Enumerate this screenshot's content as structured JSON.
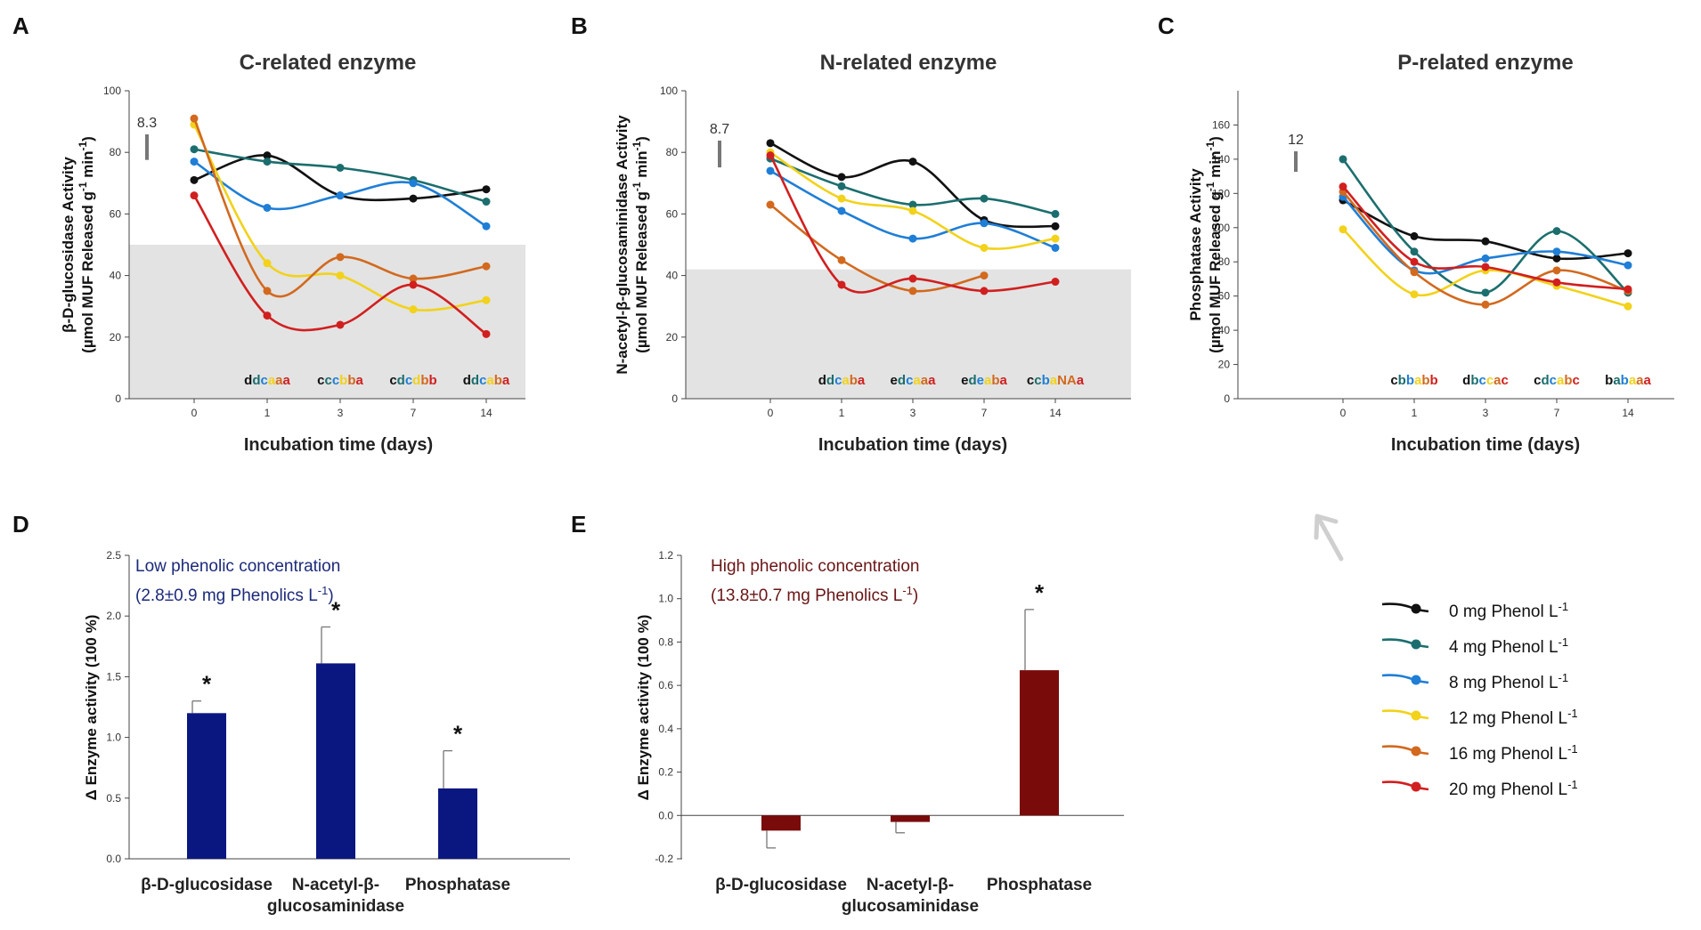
{
  "chart_data": [
    {
      "id": "A",
      "type": "line",
      "panel_label": "A",
      "title": "C-related enzyme",
      "ylabel": [
        "β-D-glucosidase Activity",
        "(µmol MUF Released g",
        "-1",
        " min",
        "-1",
        ")"
      ],
      "xlabel": "Incubation time (days)",
      "ylim": [
        0,
        100
      ],
      "yticks": [
        0,
        20,
        40,
        60,
        80,
        100
      ],
      "x": [
        "0",
        "1",
        "3",
        "7",
        "14"
      ],
      "shade_top": 50,
      "scale_bar": {
        "label": "8.3",
        "size": 8.3
      },
      "series": [
        {
          "name": "0 mg Phenol",
          "color": "#111111",
          "values": [
            71,
            79,
            66,
            65,
            68
          ]
        },
        {
          "name": "4 mg Phenol",
          "color": "#1c6e6e",
          "values": [
            81,
            77,
            75,
            71,
            64
          ]
        },
        {
          "name": "8 mg Phenol",
          "color": "#1f7ed6",
          "values": [
            77,
            62,
            66,
            70,
            56
          ]
        },
        {
          "name": "12 mg Phenol",
          "color": "#f2d21a",
          "values": [
            89,
            44,
            40,
            29,
            32
          ]
        },
        {
          "name": "16 mg Phenol",
          "color": "#d2691e",
          "values": [
            91,
            35,
            46,
            39,
            43
          ]
        },
        {
          "name": "20 mg Phenol",
          "color": "#d11f1f",
          "values": [
            66,
            27,
            24,
            37,
            21
          ]
        }
      ],
      "sig_letters": [
        [
          "d",
          "d",
          "c",
          "a",
          "a",
          "a"
        ],
        [
          "c",
          "c",
          "c",
          "b",
          "b",
          "a"
        ],
        [
          "c",
          "d",
          "c",
          "d",
          "b",
          "b"
        ],
        [
          "d",
          "d",
          "c",
          "a",
          "b",
          "a"
        ]
      ]
    },
    {
      "id": "B",
      "type": "line",
      "panel_label": "B",
      "title": "N-related enzyme",
      "ylabel": [
        "N-acetyl-β-glucosaminidase Activity",
        "(µmol MUF Released g",
        "-1",
        " min",
        "-1",
        ")"
      ],
      "xlabel": "Incubation time (days)",
      "ylim": [
        0,
        100
      ],
      "yticks": [
        0,
        20,
        40,
        60,
        80,
        100
      ],
      "x": [
        "0",
        "1",
        "3",
        "7",
        "14"
      ],
      "shade_top": 42,
      "scale_bar": {
        "label": "8.7",
        "size": 8.7
      },
      "series": [
        {
          "name": "0 mg Phenol",
          "color": "#111111",
          "values": [
            83,
            72,
            77,
            58,
            56
          ]
        },
        {
          "name": "4 mg Phenol",
          "color": "#1c6e6e",
          "values": [
            78,
            69,
            63,
            65,
            60
          ]
        },
        {
          "name": "8 mg Phenol",
          "color": "#1f7ed6",
          "values": [
            74,
            61,
            52,
            57,
            49
          ]
        },
        {
          "name": "12 mg Phenol",
          "color": "#f2d21a",
          "values": [
            80,
            65,
            61,
            49,
            52
          ]
        },
        {
          "name": "16 mg Phenol",
          "color": "#d2691e",
          "values": [
            63,
            45,
            35,
            40,
            null
          ]
        },
        {
          "name": "20 mg Phenol",
          "color": "#d11f1f",
          "values": [
            79,
            37,
            39,
            35,
            38
          ]
        }
      ],
      "sig_letters": [
        [
          "d",
          "d",
          "c",
          "a",
          "b",
          "a"
        ],
        [
          "e",
          "d",
          "c",
          "a",
          "a",
          "a"
        ],
        [
          "e",
          "d",
          "e",
          "a",
          "b",
          "a"
        ],
        [
          "c",
          "c",
          "b",
          "a",
          "NA",
          "a"
        ]
      ]
    },
    {
      "id": "C",
      "type": "line",
      "panel_label": "C",
      "title": "P-related enzyme",
      "ylabel": [
        "Phosphatase Activity",
        "(µmol MUF Released g",
        "-1",
        " min",
        "-1",
        ")"
      ],
      "xlabel": "Incubation time (days)",
      "ylim": [
        0,
        180
      ],
      "yticks": [
        0,
        20,
        40,
        60,
        80,
        100,
        120,
        140,
        160
      ],
      "x": [
        "0",
        "1",
        "3",
        "7",
        "14"
      ],
      "shade_top": null,
      "scale_bar": {
        "label": "12",
        "size": 12
      },
      "series": [
        {
          "name": "0 mg Phenol",
          "color": "#111111",
          "values": [
            116,
            95,
            92,
            82,
            85
          ]
        },
        {
          "name": "4 mg Phenol",
          "color": "#1c6e6e",
          "values": [
            140,
            86,
            62,
            98,
            62
          ]
        },
        {
          "name": "8 mg Phenol",
          "color": "#1f7ed6",
          "values": [
            118,
            75,
            82,
            86,
            78
          ]
        },
        {
          "name": "12 mg Phenol",
          "color": "#f2d21a",
          "values": [
            99,
            61,
            75,
            66,
            54
          ]
        },
        {
          "name": "16 mg Phenol",
          "color": "#d2691e",
          "values": [
            121,
            74,
            55,
            75,
            63
          ]
        },
        {
          "name": "20 mg Phenol",
          "color": "#d11f1f",
          "values": [
            124,
            80,
            77,
            68,
            64
          ]
        }
      ],
      "sig_letters": [
        [
          "c",
          "b",
          "b",
          "a",
          "b",
          "b"
        ],
        [
          "d",
          "b",
          "c",
          "c",
          "a",
          "c"
        ],
        [
          "c",
          "d",
          "c",
          "a",
          "b",
          "c"
        ],
        [
          "b",
          "a",
          "b",
          "a",
          "a",
          "a"
        ]
      ]
    },
    {
      "id": "D",
      "type": "bar",
      "panel_label": "D",
      "ylabel": "Δ Enzyme activity (100 %)",
      "ylim": [
        0,
        2.5
      ],
      "yticks": [
        "0.0",
        "0.5",
        "1.0",
        "1.5",
        "2.0",
        "2.5"
      ],
      "categories": [
        [
          "β-D-glucosidase"
        ],
        [
          "N-acetyl-β-",
          "glucosaminidase"
        ],
        [
          "Phosphatase"
        ]
      ],
      "values": [
        1.2,
        1.61,
        0.58
      ],
      "errors": [
        0.1,
        0.3,
        0.31
      ],
      "significant": [
        "*",
        "*",
        "*"
      ],
      "bar_color": "#0b1780",
      "note_line1": "Low phenolic concentration",
      "note_line2": "(2.8±0.9 mg Phenolics L",
      "note_sup": "-1",
      "note_end": ")",
      "note_color": "#1c2a7a"
    },
    {
      "id": "E",
      "type": "bar",
      "panel_label": "E",
      "ylabel": "Δ Enzyme activity (100 %)",
      "ylim": [
        -0.2,
        1.2
      ],
      "yticks": [
        "-0.2",
        "0.0",
        "0.2",
        "0.4",
        "0.6",
        "0.8",
        "1.0",
        "1.2"
      ],
      "categories": [
        [
          "β-D-glucosidase"
        ],
        [
          "N-acetyl-β-",
          "glucosaminidase"
        ],
        [
          "Phosphatase"
        ]
      ],
      "values": [
        -0.07,
        -0.03,
        0.67
      ],
      "errors": [
        0.08,
        0.05,
        0.28
      ],
      "significant": [
        "",
        "",
        "*"
      ],
      "bar_color": "#7a0b0b",
      "note_line1": "High phenolic concentration",
      "note_line2": "(13.8±0.7 mg Phenolics L",
      "note_sup": "-1",
      "note_end": ")",
      "note_color": "#6a1515"
    }
  ],
  "legend": {
    "suffix": "mg Phenol L",
    "sup": "-1",
    "entries": [
      {
        "dose": "0",
        "color": "#111111"
      },
      {
        "dose": "4",
        "color": "#1c6e6e"
      },
      {
        "dose": "8",
        "color": "#1f7ed6"
      },
      {
        "dose": "12",
        "color": "#f2d21a"
      },
      {
        "dose": "16",
        "color": "#d2691e"
      },
      {
        "dose": "20",
        "color": "#d11f1f"
      }
    ]
  },
  "colors": {
    "shade": "#e3e3e3",
    "axis": "#444444",
    "arrow": "#cfcfcf"
  }
}
